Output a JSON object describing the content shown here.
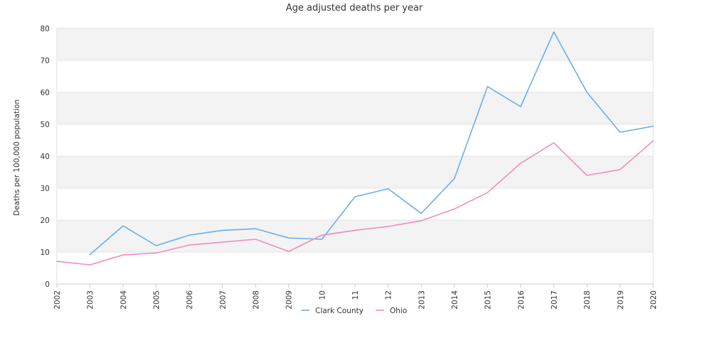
{
  "chart_data": {
    "type": "line",
    "title": "Age adjusted deaths per year",
    "xlabel": "",
    "ylabel": "Deaths per 100,000 population",
    "categories": [
      "2002",
      "2003",
      "2004",
      "2005",
      "2006",
      "2007",
      "2008",
      "2009",
      "10",
      "11",
      "12",
      "2013",
      "2014",
      "2015",
      "2016",
      "2017",
      "2018",
      "2019",
      "2020"
    ],
    "ylim": [
      0,
      80
    ],
    "yticks": [
      0,
      10,
      20,
      30,
      40,
      50,
      60,
      70,
      80
    ],
    "grid": "banded horizontal",
    "legend_position": "bottom-center",
    "series": [
      {
        "name": "Clark County",
        "color": "#6aaee8",
        "values": [
          null,
          9.2,
          18.2,
          12.0,
          15.3,
          16.8,
          17.3,
          14.4,
          14.0,
          27.3,
          29.8,
          22.1,
          33.0,
          61.8,
          55.5,
          78.9,
          60.0,
          47.5,
          49.4
        ]
      },
      {
        "name": "Ohio",
        "color": "#f08cbe",
        "values": [
          7.1,
          6.0,
          9.1,
          9.7,
          12.2,
          13.1,
          14.0,
          10.2,
          15.3,
          16.8,
          18.0,
          19.8,
          23.5,
          28.6,
          37.8,
          44.2,
          34.0,
          35.8,
          44.8
        ]
      }
    ]
  }
}
